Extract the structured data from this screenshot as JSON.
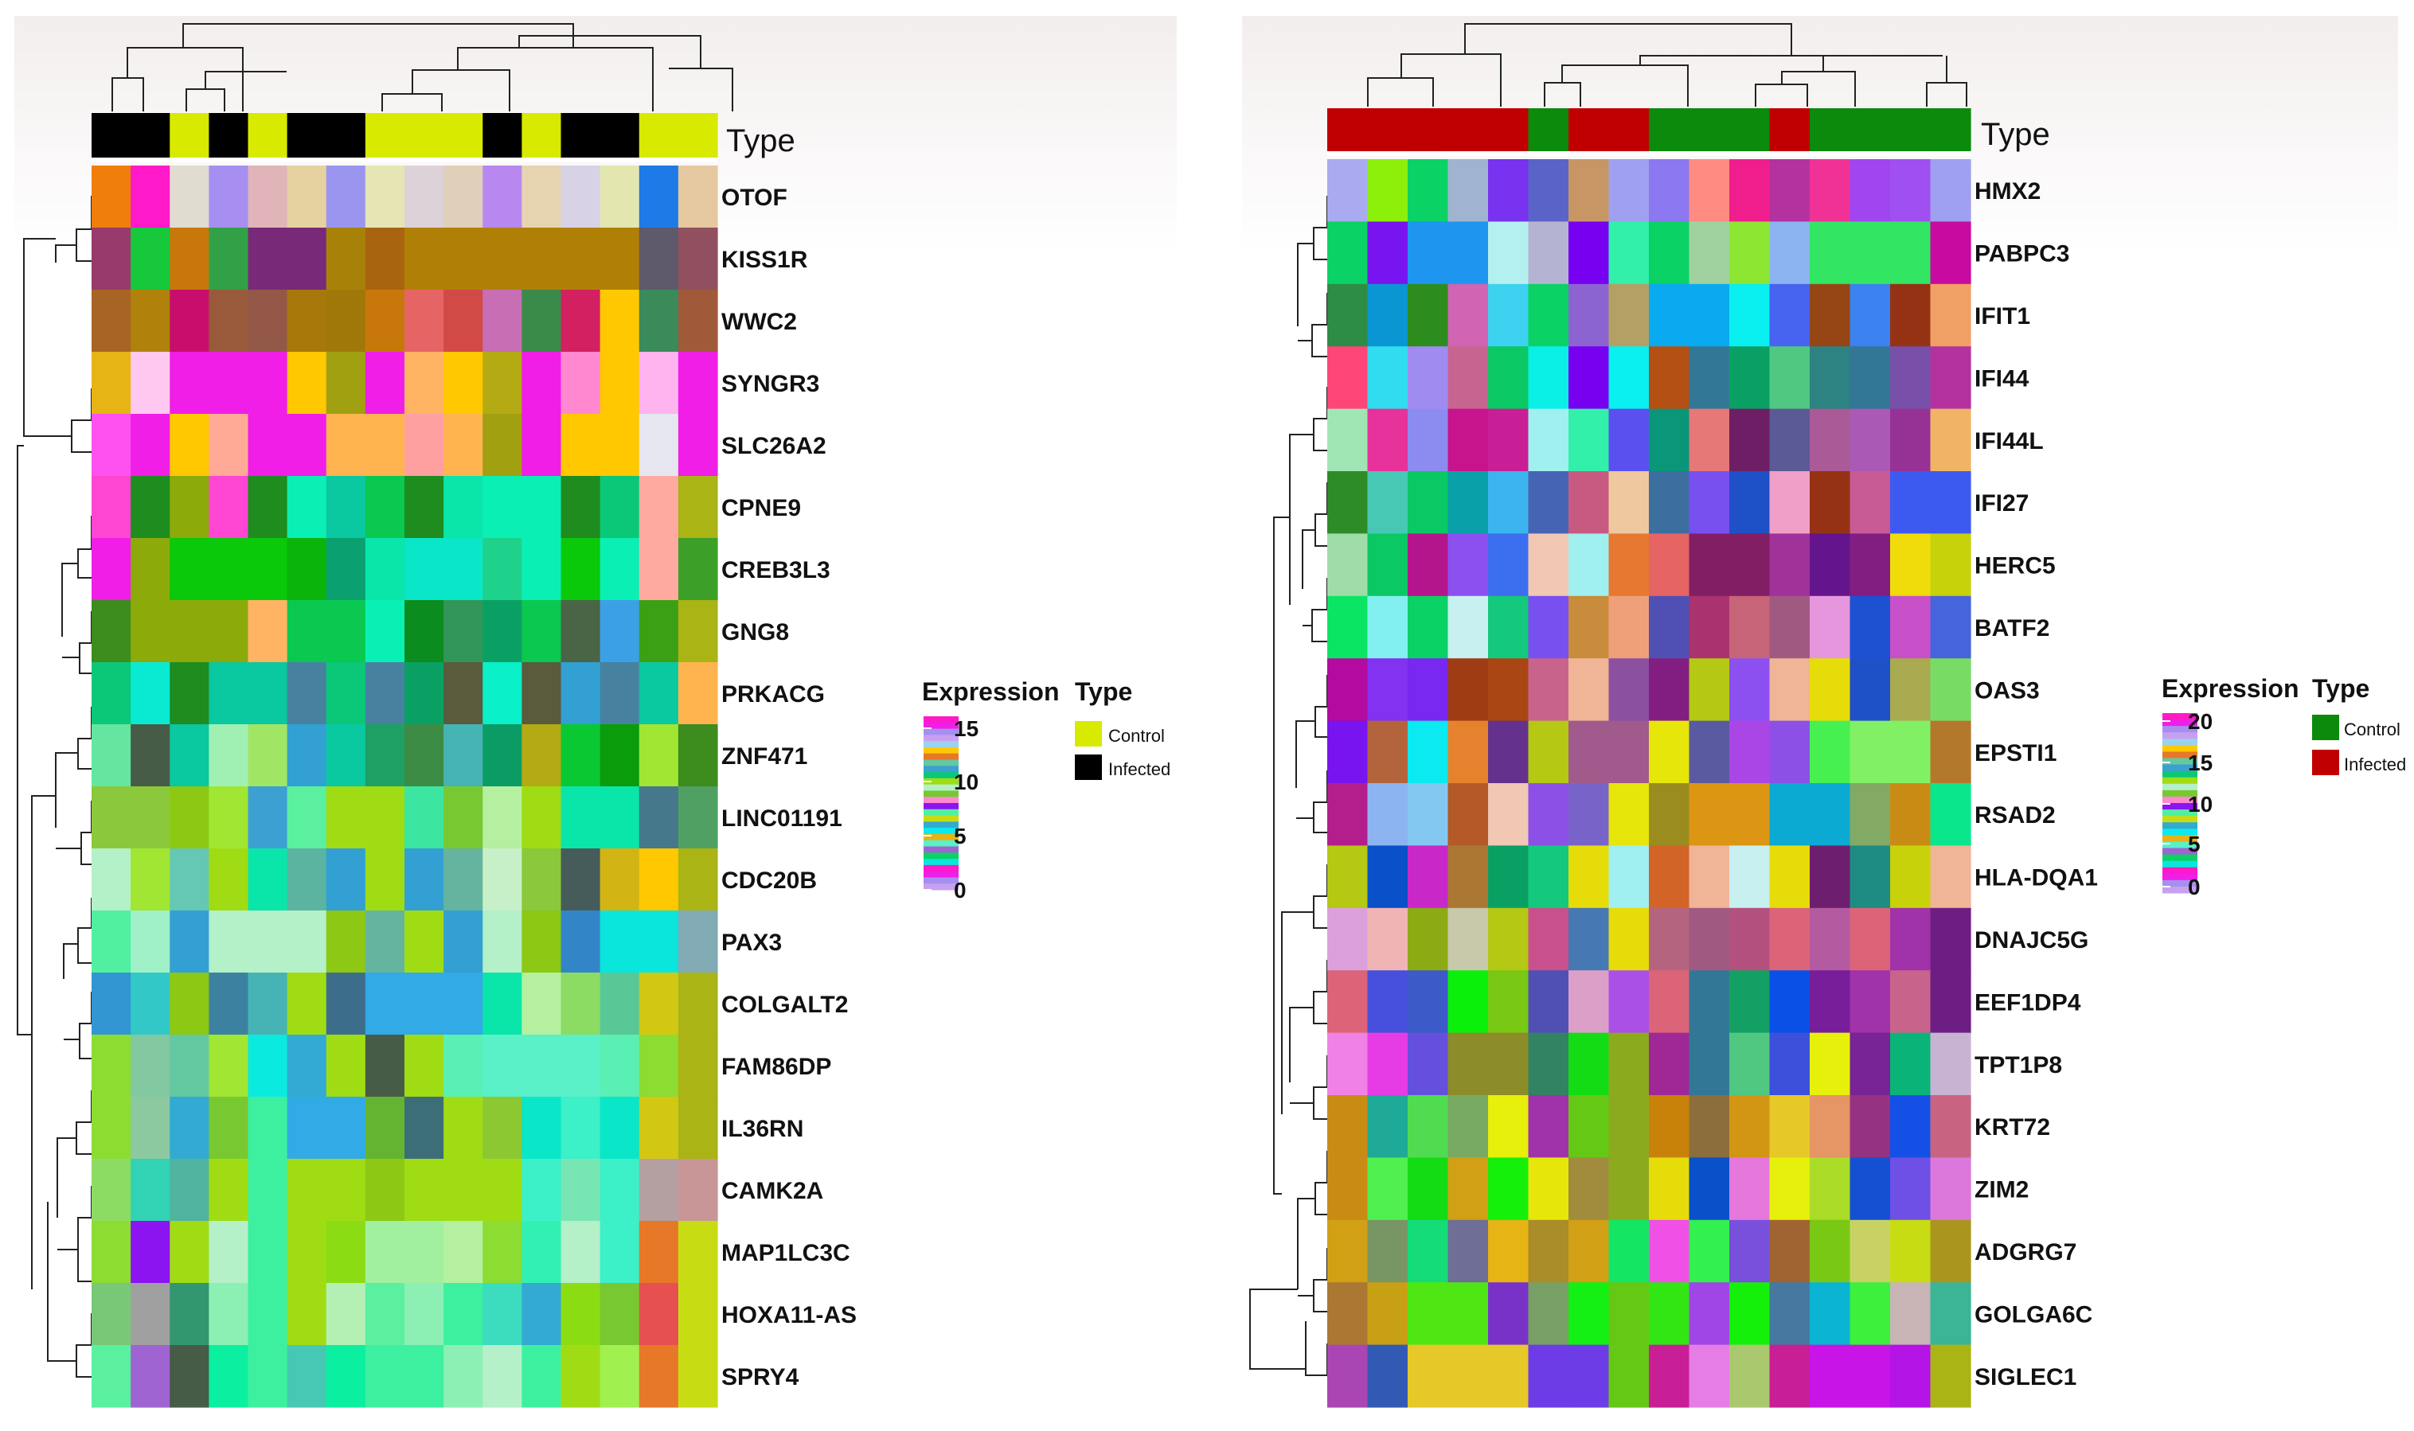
{
  "colors": {
    "control_left": "#d8ea00",
    "infected_left": "#000000",
    "control_right": "#0b8a0b",
    "infected_right": "#c00000"
  },
  "chart_data": [
    {
      "type": "heatmap",
      "id": "left",
      "type_label": "Type",
      "rows": [
        "OTOF",
        "KISS1R",
        "WWC2",
        "SYNGR3",
        "SLC26A2",
        "CPNE9",
        "CREB3L3",
        "GNG8",
        "PRKACG",
        "ZNF471",
        "LINC01191",
        "CDC20B",
        "PAX3",
        "COLGALT2",
        "FAM86DP",
        "IL36RN",
        "CAMK2A",
        "MAP1LC3C",
        "HOXA11-AS",
        "SPRY4"
      ],
      "sample_types": [
        "Infected",
        "Infected",
        "Control",
        "Infected",
        "Control",
        "Infected",
        "Infected",
        "Control",
        "Control",
        "Control",
        "Infected",
        "Control",
        "Infected",
        "Infected",
        "Control",
        "Control"
      ],
      "legend": {
        "expression_title": "Expression",
        "type_title": "Type",
        "ticks": [
          "15",
          "10",
          "5",
          "0"
        ],
        "categories": [
          "Control",
          "Infected"
        ]
      },
      "cell_colors": [
        [
          "#f07e0a",
          "#ff19c8",
          "#e0dcd0",
          "#a68ff0",
          "#e0b4b8",
          "#e6d2a0",
          "#9a96f0",
          "#e6e6b4",
          "#dcd2d8",
          "#e0d0ba",
          "#b888f0",
          "#e6d4b0",
          "#d8d2e6",
          "#e4e6b0",
          "#1e7ae6",
          "#e6c8a0"
        ],
        [
          "#983a6c",
          "#16c83a",
          "#c8780a",
          "#32a046",
          "#782a78",
          "#782a78",
          "#a88208",
          "#a8640f",
          "#b08006",
          "#b08006",
          "#b08006",
          "#b08006",
          "#b08006",
          "#b08006",
          "#5e5a6c",
          "#905060"
        ],
        [
          "#a86424",
          "#b0820c",
          "#c80e6c",
          "#985a3a",
          "#945848",
          "#a8780a",
          "#a0780a",
          "#c8780a",
          "#e66464",
          "#d24a46",
          "#c86eb4",
          "#3a8a4a",
          "#d22060",
          "#ffc800",
          "#3a8a5a",
          "#a05a3a"
        ],
        [
          "#e6b414",
          "#ffc8f0",
          "#f01ee6",
          "#f01ee6",
          "#f01ee6",
          "#ffc800",
          "#a0a010",
          "#f01ee6",
          "#ffb464",
          "#ffc800",
          "#b4aa14",
          "#f01ee6",
          "#ff88d0",
          "#ffc800",
          "#ffb4f0",
          "#f01ee6"
        ],
        [
          "#ff50f0",
          "#f01ee6",
          "#ffc800",
          "#ffaa96",
          "#f01ee6",
          "#f01ee6",
          "#ffb450",
          "#ffb450",
          "#ffa0a0",
          "#ffb450",
          "#a0a010",
          "#f01ee6",
          "#ffc800",
          "#ffc800",
          "#e6e6f0",
          "#f01ee6"
        ],
        [
          "#ff46d2",
          "#1e8c1e",
          "#8caa0a",
          "#ff46d2",
          "#1e8c1e",
          "#0af0b4",
          "#0ac8a0",
          "#0ac850",
          "#1e8c1e",
          "#0ae6aa",
          "#0af0b4",
          "#0af0b4",
          "#1e8c1e",
          "#0ac878",
          "#ffaaa0",
          "#aab414"
        ],
        [
          "#f01ee6",
          "#8caa0a",
          "#0ac80a",
          "#0ac80a",
          "#0ac80a",
          "#0ab40a",
          "#0aa070",
          "#0ae6aa",
          "#0ae6c8",
          "#0ae6c8",
          "#1ed28c",
          "#0af0b4",
          "#0ac80a",
          "#0af0b4",
          "#ffaaa0",
          "#3ca028"
        ],
        [
          "#3c8c1e",
          "#8caa0a",
          "#8caa0a",
          "#8caa0a",
          "#ffb464",
          "#0ac850",
          "#0ac850",
          "#0af0b4",
          "#0a8c1e",
          "#32965a",
          "#0aa064",
          "#0ac850",
          "#4a6446",
          "#3ca0e6",
          "#3ca014",
          "#aab414"
        ],
        [
          "#0ac878",
          "#0aead2",
          "#1e8c1e",
          "#0ac8a0",
          "#0ac8a0",
          "#4682a0",
          "#0ac878",
          "#4682a0",
          "#0aa064",
          "#5a5a3c",
          "#0af0c8",
          "#5a5a3c",
          "#32a0d2",
          "#4682a0",
          "#0ac8a0",
          "#ffb450"
        ],
        [
          "#64e6a0",
          "#465c46",
          "#0ac8a0",
          "#a0f0b4",
          "#a0e664",
          "#32a0d2",
          "#0ac8a0",
          "#1ea064",
          "#3c8c46",
          "#46b4b4",
          "#0a9c64",
          "#b4aa14",
          "#0ac832",
          "#0a9c0a",
          "#a0e632",
          "#3c8c1e"
        ],
        [
          "#8cc83c",
          "#8cc83c",
          "#8cc814",
          "#a0e632",
          "#3ca0d2",
          "#5af0a0",
          "#a0dc14",
          "#a0dc14",
          "#3ce6a0",
          "#78c832",
          "#b4f0a0",
          "#a0dc14",
          "#0ae6aa",
          "#0ae6aa",
          "#46788c",
          "#50a064"
        ],
        [
          "#b4f0c8",
          "#a0e632",
          "#64c8b4",
          "#a0dc14",
          "#0ae6aa",
          "#5ab4a0",
          "#32a0d2",
          "#a0dc14",
          "#32a0d2",
          "#64b4a0",
          "#c8f0c8",
          "#8cc83c",
          "#465c5a",
          "#d2b414",
          "#ffc800",
          "#aab414"
        ],
        [
          "#50f0a0",
          "#a0f0c8",
          "#32a0d2",
          "#b4f0c8",
          "#b4f0c8",
          "#b4f0c8",
          "#8cc814",
          "#64b4a0",
          "#a0dc14",
          "#32a0d2",
          "#b4f0c8",
          "#8cc814",
          "#3286c8",
          "#0ae6dc",
          "#0ae6dc",
          "#82aab4"
        ],
        [
          "#3296d2",
          "#32c8c8",
          "#8cc814",
          "#3c82a0",
          "#46b4b4",
          "#a0dc14",
          "#3c6e8c",
          "#32aae6",
          "#32aae6",
          "#32aae6",
          "#0ae6aa",
          "#b4f0a0",
          "#8cdc64",
          "#5ac896",
          "#d2c814",
          "#aab414"
        ],
        [
          "#8cdc32",
          "#82c8a0",
          "#64c8a0",
          "#a0e632",
          "#0aeade",
          "#32aad2",
          "#a0dc14",
          "#465c46",
          "#a0dc14",
          "#5af0b4",
          "#5af0c8",
          "#5af0c8",
          "#5af0c8",
          "#5af0b4",
          "#8cdc32",
          "#aab414"
        ],
        [
          "#8cdc32",
          "#8cc8a0",
          "#32aad2",
          "#78c832",
          "#3cf0a0",
          "#32aae6",
          "#32aae6",
          "#64b432",
          "#3c6e78",
          "#a0dc14",
          "#8cc832",
          "#0ae6c8",
          "#3cf0c8",
          "#0ae6c8",
          "#d2c814",
          "#aab414"
        ],
        [
          "#8cdc64",
          "#32d2b4",
          "#50b4a0",
          "#a0dc14",
          "#3cf0a0",
          "#a0dc14",
          "#a0dc14",
          "#8cc814",
          "#a0dc14",
          "#a0dc14",
          "#a0dc14",
          "#3cf0c8",
          "#78e6b4",
          "#3cf0c8",
          "#b4a0a0",
          "#c89696"
        ],
        [
          "#8cdc32",
          "#8c14f0",
          "#a0dc14",
          "#b4f0c8",
          "#3cf0a0",
          "#a0dc14",
          "#8cdc14",
          "#a0f0a0",
          "#a0f0a0",
          "#b4f0a0",
          "#8cdc32",
          "#32f0b4",
          "#b4f0c8",
          "#3cf0c8",
          "#e67828",
          "#c8dc14"
        ],
        [
          "#78c878",
          "#a0a0a0",
          "#32966e",
          "#8cf0b4",
          "#3cf0a0",
          "#a0dc14",
          "#b4f0b4",
          "#5af0a0",
          "#8cf0b4",
          "#3cf0a0",
          "#3cdcbe",
          "#32aad2",
          "#8cdc14",
          "#78c832",
          "#e65050",
          "#c8dc14"
        ],
        [
          "#5af0a0",
          "#a064d2",
          "#465c46",
          "#0af0a0",
          "#3cf0a0",
          "#46c8b4",
          "#0af0a0",
          "#3cf0a0",
          "#3cf0a0",
          "#8cf0b4",
          "#b4f0c8",
          "#3cf0a0",
          "#a0dc14",
          "#a0f050",
          "#e67828",
          "#c8dc14"
        ]
      ]
    },
    {
      "type": "heatmap",
      "id": "right",
      "type_label": "Type",
      "rows": [
        "HMX2",
        "PABPC3",
        "IFIT1",
        "IFI44",
        "IFI44L",
        "IFI27",
        "HERC5",
        "BATF2",
        "OAS3",
        "EPSTI1",
        "RSAD2",
        "HLA-DQA1",
        "DNAJC5G",
        "EEF1DP4",
        "TPT1P8",
        "KRT72",
        "ZIM2",
        "ADGRG7",
        "GOLGA6C",
        "SIGLEC1"
      ],
      "sample_types": [
        "Infected",
        "Infected",
        "Infected",
        "Infected",
        "Infected",
        "Control",
        "Infected",
        "Infected",
        "Control",
        "Control",
        "Control",
        "Infected",
        "Control",
        "Control",
        "Control",
        "Control"
      ],
      "legend": {
        "expression_title": "Expression",
        "type_title": "Type",
        "ticks": [
          "20",
          "15",
          "10",
          "5",
          "0"
        ],
        "categories": [
          "Control",
          "Infected"
        ]
      },
      "cell_colors": [
        [
          "#aaaaf0",
          "#8cf00a",
          "#0ad264",
          "#a0b4d2",
          "#7832f0",
          "#5a64c8",
          "#c89664",
          "#a0a0f0",
          "#8c78f0",
          "#ff8c82",
          "#f01e8c",
          "#b432a0",
          "#f03296",
          "#a046f0",
          "#a050f0",
          "#a0a0f0"
        ],
        [
          "#0ad264",
          "#7814f0",
          "#1e96f0",
          "#1e96f0",
          "#b4f0f0",
          "#b4b4d2",
          "#7800f0",
          "#32f0aa",
          "#0ad264",
          "#a0d2a0",
          "#8ce632",
          "#8cb4f0",
          "#32e664",
          "#32e664",
          "#32e664",
          "#c80aa0"
        ],
        [
          "#2d8c46",
          "#0a96d2",
          "#2d8c1e",
          "#d264b4",
          "#3cd2f0",
          "#0ad264",
          "#8c64d2",
          "#b4a064",
          "#0aaaf0",
          "#0aaaf0",
          "#0af0f0",
          "#4664f0",
          "#964614",
          "#3c82f0",
          "#963214",
          "#f0a064"
        ],
        [
          "#ff4678",
          "#32dcf0",
          "#a08cf0",
          "#c86490",
          "#0ac864",
          "#0af0e6",
          "#7800f0",
          "#0af0f0",
          "#b45014",
          "#327896",
          "#0aa064",
          "#50c882",
          "#2d8282",
          "#327896",
          "#7850aa",
          "#b432a0"
        ],
        [
          "#a0e6b4",
          "#e6329a",
          "#8c8cf0",
          "#c8148c",
          "#c81e96",
          "#a0f0f0",
          "#32f0aa",
          "#5a50f0",
          "#0a9678",
          "#e67878",
          "#6e1e64",
          "#5a5a96",
          "#aa5a96",
          "#aa5ab4",
          "#963296",
          "#f0b464"
        ],
        [
          "#2d8c28",
          "#46c8b4",
          "#0ac864",
          "#0aa0aa",
          "#3cb4f0",
          "#4664b4",
          "#c85a82",
          "#f0c8a0",
          "#3c6ea0",
          "#7850f0",
          "#1e50c8",
          "#f0a0c8",
          "#963214",
          "#c85a96",
          "#3c5af0",
          "#3c5af0"
        ],
        [
          "#a0dcaa",
          "#0ac864",
          "#b4148c",
          "#8c50f0",
          "#3c6ef0",
          "#f0c8b4",
          "#a0f0f0",
          "#e67832",
          "#e66464",
          "#821e64",
          "#821e64",
          "#a0329a",
          "#64148c",
          "#821e82",
          "#f0dc0a",
          "#c8d20a"
        ],
        [
          "#0ae664",
          "#82f0f0",
          "#0ad264",
          "#c8f0f0",
          "#14c87d",
          "#7850f0",
          "#c88c3c",
          "#f0a078",
          "#5050b4",
          "#aa326e",
          "#c86478",
          "#a05a82",
          "#e696dc",
          "#1e50d2",
          "#c850c8",
          "#4664dc"
        ],
        [
          "#b40aa0",
          "#8232f0",
          "#7828f0",
          "#a03c14",
          "#aa4614",
          "#c8648c",
          "#f0b496",
          "#8c50a0",
          "#821e82",
          "#b4c814",
          "#8c50f0",
          "#f0b496",
          "#e6dc0a",
          "#1e50c8",
          "#aaaa50",
          "#78dc64"
        ],
        [
          "#7814f0",
          "#b4643c",
          "#0aeaf0",
          "#e6822d",
          "#64328c",
          "#b4c814",
          "#a05a8c",
          "#a05a8c",
          "#e6e60a",
          "#5a5aa0",
          "#aa46e6",
          "#8c50e6",
          "#46f050",
          "#82f064",
          "#82f064",
          "#b4782d"
        ],
        [
          "#b41e8c",
          "#8cb4f0",
          "#82c8f0",
          "#b45a28",
          "#f0c8b4",
          "#8c50e6",
          "#7864c8",
          "#e6e60a",
          "#9a8c1e",
          "#dc9614",
          "#dc9614",
          "#0aaad2",
          "#0aaad2",
          "#82aa64",
          "#c88c14",
          "#0ae68c"
        ],
        [
          "#b4c814",
          "#0a50c8",
          "#c828c8",
          "#aa7832",
          "#0aa064",
          "#14c87d",
          "#e6dc0a",
          "#a0f0f0",
          "#d26428",
          "#f0b496",
          "#c8f0f0",
          "#e6dc0a",
          "#6e1e6e",
          "#1e8c82",
          "#c8d20a",
          "#f0b496"
        ],
        [
          "#dca0dc",
          "#f0b4b4",
          "#8caa14",
          "#c8c8aa",
          "#b4c814",
          "#c8508c",
          "#4678b4",
          "#e6dc0a",
          "#b4647e",
          "#a05a82",
          "#b4507e",
          "#dc6478",
          "#b45aa0",
          "#dc6478",
          "#a032aa",
          "#6e1e82"
        ],
        [
          "#dc6478",
          "#4650dc",
          "#3c5ac8",
          "#0af00a",
          "#78c814",
          "#5050b4",
          "#dca0c8",
          "#aa50e6",
          "#dc6478",
          "#327896",
          "#14a064",
          "#0a50e6",
          "#781e9a",
          "#a032aa",
          "#c8648c",
          "#6e1e82"
        ],
        [
          "#f082e6",
          "#e63ce6",
          "#6450dc",
          "#8c8c28",
          "#8c8c28",
          "#328264",
          "#14dc14",
          "#8caa1e",
          "#a02896",
          "#327896",
          "#50c882",
          "#3c50dc",
          "#e6f00a",
          "#782396",
          "#0ab478",
          "#c8b4d2"
        ],
        [
          "#c88c14",
          "#1eaa96",
          "#50dc50",
          "#78aa64",
          "#e6f00a",
          "#a032aa",
          "#64c814",
          "#8caa1e",
          "#c8820a",
          "#8c6e3c",
          "#d29614",
          "#e6c828",
          "#e69664",
          "#963282",
          "#1450e6",
          "#c86482"
        ],
        [
          "#c88c14",
          "#50f050",
          "#14dc14",
          "#d2a014",
          "#14f00a",
          "#e6e60a",
          "#a08c3c",
          "#8caa1e",
          "#e6dc0a",
          "#0a50c8",
          "#e678dc",
          "#e6f00a",
          "#aadc28",
          "#1450d2",
          "#6e50e6",
          "#dc78dc"
        ],
        [
          "#d2a014",
          "#789664",
          "#14dc78",
          "#6e6e96",
          "#e6b414",
          "#aa8c28",
          "#d2a014",
          "#14e664",
          "#f050e6",
          "#32f050",
          "#7850dc",
          "#a06432",
          "#78c814",
          "#c8d264",
          "#c8dc14",
          "#aa961e"
        ],
        [
          "#aa7832",
          "#c8a014",
          "#50e614",
          "#50e614",
          "#7832c8",
          "#78a064",
          "#14f014",
          "#64c814",
          "#32e614",
          "#a046e6",
          "#14f00a",
          "#4678a0",
          "#0ab4d2",
          "#3cf03c",
          "#c8b4b4",
          "#3cb496"
        ],
        [
          "#aa46b4",
          "#325ab4",
          "#e6c828",
          "#e6c828",
          "#e6c828",
          "#6e3ce6",
          "#6e3ce6",
          "#64c814",
          "#c81e96",
          "#e67ce6",
          "#aac86e",
          "#c81e96",
          "#c814e6",
          "#c814e6",
          "#b414e6",
          "#aab414"
        ]
      ]
    }
  ]
}
